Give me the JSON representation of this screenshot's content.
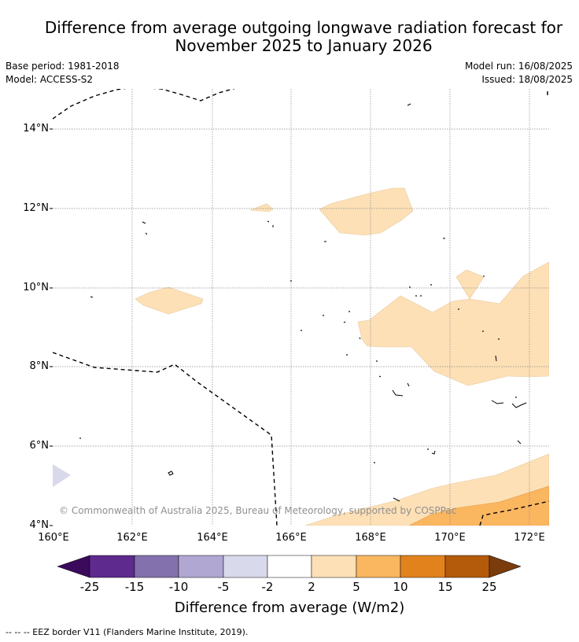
{
  "title": {
    "line1": "Difference from average outgoing longwave radiation forecast for",
    "line2": "November 2025 to January 2026"
  },
  "meta": {
    "base_period": "Base period: 1981-2018",
    "model": "Model: ACCESS-S2",
    "model_run": "Model run: 16/08/2025",
    "issued": "Issued: 18/08/2025"
  },
  "map": {
    "lat_labels": [
      "14°N",
      "12°N",
      "10°N",
      "8°N",
      "6°N",
      "4°N"
    ],
    "lon_labels": [
      "160°E",
      "162°E",
      "164°E",
      "166°E",
      "168°E",
      "170°E",
      "172°E"
    ],
    "copyright": "© Commonwealth of Australia 2025, Bureau of Meteorology, supported by COSPPac",
    "eez_note": "--  --  -- EEZ border V11 (Flanders Marine Institute, 2019)."
  },
  "colorbar": {
    "label": "Difference from average (W/m2)",
    "ticks": [
      "-25",
      "-15",
      "-10",
      "-5",
      "-2",
      "2",
      "5",
      "10",
      "15",
      "25"
    ],
    "colors": [
      "#3b0a5c",
      "#5e2a8e",
      "#8371ad",
      "#b0a8d2",
      "#d9d9ec",
      "#ffffff",
      "#fde0b6",
      "#fbb660",
      "#e2821c",
      "#b45a0b",
      "#7b3c0c"
    ]
  }
}
